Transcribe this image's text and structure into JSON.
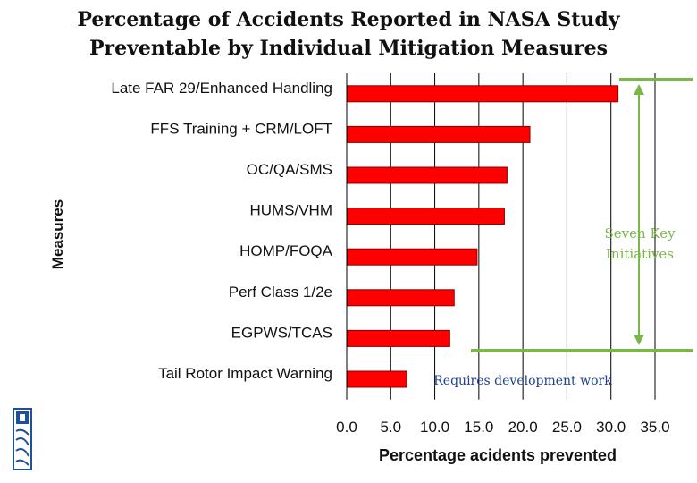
{
  "slide": {
    "title_line1": "Percentage of Accidents Reported in NASA Study",
    "title_line2": "Preventable by Individual Mitigation Measures"
  },
  "annotations": {
    "bracket_label_line1": "Seven Key",
    "bracket_label_line2": "Initiatives",
    "dev_label": "Requires development work"
  },
  "colors": {
    "bar": "#ff0000",
    "bar_border": "#8b0000",
    "accent_green": "#7ab648",
    "label_blue": "#1f3f8f",
    "logo_blue": "#1f4e9a"
  },
  "chart_data": {
    "type": "bar",
    "orientation": "horizontal",
    "categories": [
      "Late FAR 29/Enhanced Handling",
      "FFS Training + CRM/LOFT",
      "OC/QA/SMS",
      "HUMS/VHM",
      "HOMP/FOQA",
      "Perf Class 1/2e",
      "EGPWS/TCAS",
      "Tail Rotor Impact Warning"
    ],
    "values": [
      30.8,
      20.8,
      18.2,
      17.9,
      14.8,
      12.2,
      11.7,
      6.8
    ],
    "xlabel": "Percentage acidents prevented",
    "ylabel": "Measures",
    "xlim": [
      0,
      35
    ],
    "xticks": [
      "0.0",
      "5.0",
      "10.0",
      "15.0",
      "20.0",
      "25.0",
      "30.0",
      "35.0"
    ],
    "grid": "vertical-major"
  }
}
